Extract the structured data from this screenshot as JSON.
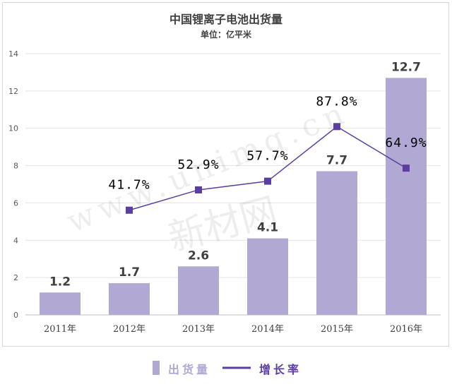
{
  "chart_data": {
    "type": "bar",
    "title": "中国锂离子电池出货量",
    "subtitle": "单位：亿平米",
    "categories": [
      "2011年",
      "2012年",
      "2013年",
      "2014年",
      "2015年",
      "2016年"
    ],
    "ylim": [
      0,
      14
    ],
    "yticks": [
      0,
      2,
      4,
      6,
      8,
      10,
      12,
      14
    ],
    "grid": true,
    "legend_position": "bottom",
    "series": [
      {
        "name": "出货量",
        "type": "bar",
        "color": "#b1a9d4",
        "values": [
          1.2,
          1.7,
          2.6,
          4.1,
          7.7,
          12.7
        ],
        "labels": [
          "1.2",
          "1.7",
          "2.6",
          "4.1",
          "7.7",
          "12.7"
        ]
      },
      {
        "name": "增长率",
        "type": "line",
        "color": "#5b3fa0",
        "axis": "secondary-hidden",
        "values": [
          null,
          41.7,
          52.9,
          57.7,
          87.8,
          64.9
        ],
        "labels": [
          "",
          "41.7%",
          "52.9%",
          "57.7%",
          "87.8%",
          "64.9%"
        ],
        "y2lim": [
          -16,
          128
        ]
      }
    ]
  },
  "watermark": {
    "url": "www.unimg.cn",
    "name": "新材网"
  }
}
